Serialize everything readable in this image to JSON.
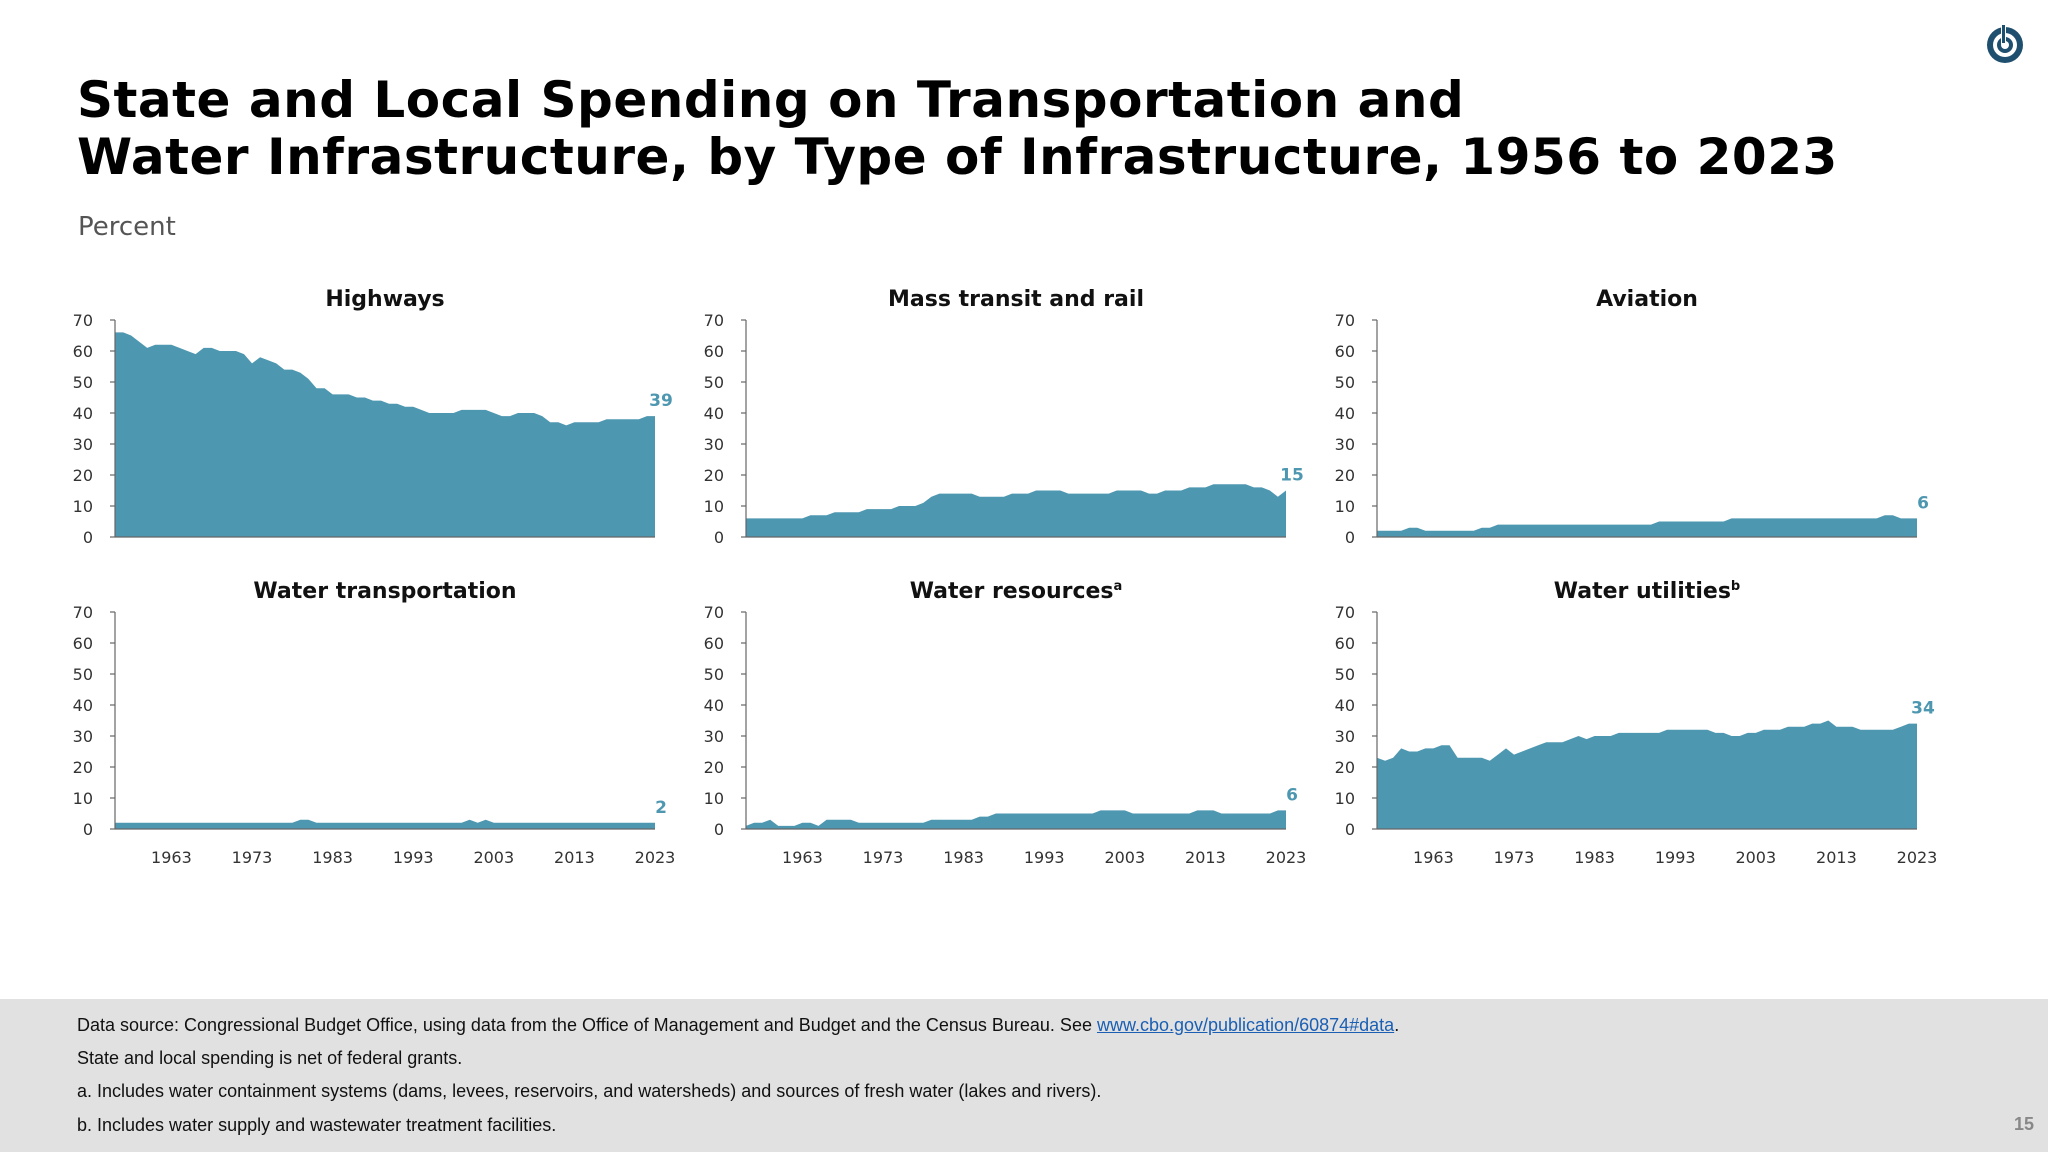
{
  "header": {
    "title_line1": "State and Local Spending on Transportation and",
    "title_line2": "Water Infrastructure, by Type of Infrastructure, 1956 to 2023",
    "units": "Percent"
  },
  "footer": {
    "source_prefix": "Data source: Congressional Budget Office, using data from the Office of Management and Budget and the Census Bureau. See ",
    "source_link": "www.cbo.gov/publication/60874#data",
    "source_suffix": ".",
    "note": "State and local spending is net of federal grants.",
    "footnote_a": "a. Includes water containment systems (dams, levees, reservoirs, and watersheds) and sources of fresh water (lakes and rivers).",
    "footnote_b": "b. Includes water supply and wastewater treatment facilities.",
    "page_number": "15"
  },
  "colors": {
    "area": "#4e97b0",
    "label": "#4e97b0",
    "axis": "#666666"
  },
  "icons": {
    "logo": "cbo-logo-icon"
  },
  "chart_data": [
    {
      "type": "area",
      "title": "Highways",
      "superscript": "",
      "ylim": [
        0,
        70
      ],
      "yticks": [
        0,
        10,
        20,
        30,
        40,
        50,
        60,
        70
      ],
      "xticks": [
        1963,
        1973,
        1983,
        1993,
        2003,
        2013,
        2023
      ],
      "x": [
        1956,
        1957,
        1958,
        1959,
        1960,
        1961,
        1962,
        1963,
        1964,
        1965,
        1966,
        1967,
        1968,
        1969,
        1970,
        1971,
        1972,
        1973,
        1974,
        1975,
        1976,
        1977,
        1978,
        1979,
        1980,
        1981,
        1982,
        1983,
        1984,
        1985,
        1986,
        1987,
        1988,
        1989,
        1990,
        1991,
        1992,
        1993,
        1994,
        1995,
        1996,
        1997,
        1998,
        1999,
        2000,
        2001,
        2002,
        2003,
        2004,
        2005,
        2006,
        2007,
        2008,
        2009,
        2010,
        2011,
        2012,
        2013,
        2014,
        2015,
        2016,
        2017,
        2018,
        2019,
        2020,
        2021,
        2022,
        2023
      ],
      "values": [
        66,
        66,
        65,
        63,
        61,
        62,
        62,
        62,
        61,
        60,
        59,
        61,
        61,
        60,
        60,
        60,
        59,
        56,
        58,
        57,
        56,
        54,
        54,
        53,
        51,
        48,
        48,
        46,
        46,
        46,
        45,
        45,
        44,
        44,
        43,
        43,
        42,
        42,
        41,
        40,
        40,
        40,
        40,
        41,
        41,
        41,
        41,
        40,
        39,
        39,
        40,
        40,
        40,
        39,
        37,
        37,
        36,
        37,
        37,
        37,
        37,
        38,
        38,
        38,
        38,
        38,
        39,
        39
      ],
      "end_label": "39",
      "show_xticks": false
    },
    {
      "type": "area",
      "title": "Mass transit and rail",
      "superscript": "",
      "ylim": [
        0,
        70
      ],
      "yticks": [
        0,
        10,
        20,
        30,
        40,
        50,
        60,
        70
      ],
      "xticks": [
        1963,
        1973,
        1983,
        1993,
        2003,
        2013,
        2023
      ],
      "x": [
        1956,
        1957,
        1958,
        1959,
        1960,
        1961,
        1962,
        1963,
        1964,
        1965,
        1966,
        1967,
        1968,
        1969,
        1970,
        1971,
        1972,
        1973,
        1974,
        1975,
        1976,
        1977,
        1978,
        1979,
        1980,
        1981,
        1982,
        1983,
        1984,
        1985,
        1986,
        1987,
        1988,
        1989,
        1990,
        1991,
        1992,
        1993,
        1994,
        1995,
        1996,
        1997,
        1998,
        1999,
        2000,
        2001,
        2002,
        2003,
        2004,
        2005,
        2006,
        2007,
        2008,
        2009,
        2010,
        2011,
        2012,
        2013,
        2014,
        2015,
        2016,
        2017,
        2018,
        2019,
        2020,
        2021,
        2022,
        2023
      ],
      "values": [
        6,
        6,
        6,
        6,
        6,
        6,
        6,
        6,
        7,
        7,
        7,
        8,
        8,
        8,
        8,
        9,
        9,
        9,
        9,
        10,
        10,
        10,
        11,
        13,
        14,
        14,
        14,
        14,
        14,
        13,
        13,
        13,
        13,
        14,
        14,
        14,
        15,
        15,
        15,
        15,
        14,
        14,
        14,
        14,
        14,
        14,
        15,
        15,
        15,
        15,
        14,
        14,
        15,
        15,
        15,
        16,
        16,
        16,
        17,
        17,
        17,
        17,
        17,
        16,
        16,
        15,
        13,
        15
      ],
      "end_label": "15",
      "show_xticks": false
    },
    {
      "type": "area",
      "title": "Aviation",
      "superscript": "",
      "ylim": [
        0,
        70
      ],
      "yticks": [
        0,
        10,
        20,
        30,
        40,
        50,
        60,
        70
      ],
      "xticks": [
        1963,
        1973,
        1983,
        1993,
        2003,
        2013,
        2023
      ],
      "x": [
        1956,
        1957,
        1958,
        1959,
        1960,
        1961,
        1962,
        1963,
        1964,
        1965,
        1966,
        1967,
        1968,
        1969,
        1970,
        1971,
        1972,
        1973,
        1974,
        1975,
        1976,
        1977,
        1978,
        1979,
        1980,
        1981,
        1982,
        1983,
        1984,
        1985,
        1986,
        1987,
        1988,
        1989,
        1990,
        1991,
        1992,
        1993,
        1994,
        1995,
        1996,
        1997,
        1998,
        1999,
        2000,
        2001,
        2002,
        2003,
        2004,
        2005,
        2006,
        2007,
        2008,
        2009,
        2010,
        2011,
        2012,
        2013,
        2014,
        2015,
        2016,
        2017,
        2018,
        2019,
        2020,
        2021,
        2022,
        2023
      ],
      "values": [
        2,
        2,
        2,
        2,
        3,
        3,
        2,
        2,
        2,
        2,
        2,
        2,
        2,
        3,
        3,
        4,
        4,
        4,
        4,
        4,
        4,
        4,
        4,
        4,
        4,
        4,
        4,
        4,
        4,
        4,
        4,
        4,
        4,
        4,
        4,
        5,
        5,
        5,
        5,
        5,
        5,
        5,
        5,
        5,
        6,
        6,
        6,
        6,
        6,
        6,
        6,
        6,
        6,
        6,
        6,
        6,
        6,
        6,
        6,
        6,
        6,
        6,
        6,
        7,
        7,
        6,
        6,
        6
      ],
      "end_label": "6",
      "show_xticks": false
    },
    {
      "type": "area",
      "title": "Water transportation",
      "superscript": "",
      "ylim": [
        0,
        70
      ],
      "yticks": [
        0,
        10,
        20,
        30,
        40,
        50,
        60,
        70
      ],
      "xticks": [
        1963,
        1973,
        1983,
        1993,
        2003,
        2013,
        2023
      ],
      "x": [
        1956,
        1957,
        1958,
        1959,
        1960,
        1961,
        1962,
        1963,
        1964,
        1965,
        1966,
        1967,
        1968,
        1969,
        1970,
        1971,
        1972,
        1973,
        1974,
        1975,
        1976,
        1977,
        1978,
        1979,
        1980,
        1981,
        1982,
        1983,
        1984,
        1985,
        1986,
        1987,
        1988,
        1989,
        1990,
        1991,
        1992,
        1993,
        1994,
        1995,
        1996,
        1997,
        1998,
        1999,
        2000,
        2001,
        2002,
        2003,
        2004,
        2005,
        2006,
        2007,
        2008,
        2009,
        2010,
        2011,
        2012,
        2013,
        2014,
        2015,
        2016,
        2017,
        2018,
        2019,
        2020,
        2021,
        2022,
        2023
      ],
      "values": [
        2,
        2,
        2,
        2,
        2,
        2,
        2,
        2,
        2,
        2,
        2,
        2,
        2,
        2,
        2,
        2,
        2,
        2,
        2,
        2,
        2,
        2,
        2,
        3,
        3,
        2,
        2,
        2,
        2,
        2,
        2,
        2,
        2,
        2,
        2,
        2,
        2,
        2,
        2,
        2,
        2,
        2,
        2,
        2,
        3,
        2,
        3,
        2,
        2,
        2,
        2,
        2,
        2,
        2,
        2,
        2,
        2,
        2,
        2,
        2,
        2,
        2,
        2,
        2,
        2,
        2,
        2,
        2
      ],
      "end_label": "2",
      "show_xticks": true
    },
    {
      "type": "area",
      "title": "Water resources",
      "superscript": "a",
      "ylim": [
        0,
        70
      ],
      "yticks": [
        0,
        10,
        20,
        30,
        40,
        50,
        60,
        70
      ],
      "xticks": [
        1963,
        1973,
        1983,
        1993,
        2003,
        2013,
        2023
      ],
      "x": [
        1956,
        1957,
        1958,
        1959,
        1960,
        1961,
        1962,
        1963,
        1964,
        1965,
        1966,
        1967,
        1968,
        1969,
        1970,
        1971,
        1972,
        1973,
        1974,
        1975,
        1976,
        1977,
        1978,
        1979,
        1980,
        1981,
        1982,
        1983,
        1984,
        1985,
        1986,
        1987,
        1988,
        1989,
        1990,
        1991,
        1992,
        1993,
        1994,
        1995,
        1996,
        1997,
        1998,
        1999,
        2000,
        2001,
        2002,
        2003,
        2004,
        2005,
        2006,
        2007,
        2008,
        2009,
        2010,
        2011,
        2012,
        2013,
        2014,
        2015,
        2016,
        2017,
        2018,
        2019,
        2020,
        2021,
        2022,
        2023
      ],
      "values": [
        1,
        2,
        2,
        3,
        1,
        1,
        1,
        2,
        2,
        1,
        3,
        3,
        3,
        3,
        2,
        2,
        2,
        2,
        2,
        2,
        2,
        2,
        2,
        3,
        3,
        3,
        3,
        3,
        3,
        4,
        4,
        5,
        5,
        5,
        5,
        5,
        5,
        5,
        5,
        5,
        5,
        5,
        5,
        5,
        6,
        6,
        6,
        6,
        5,
        5,
        5,
        5,
        5,
        5,
        5,
        5,
        6,
        6,
        6,
        5,
        5,
        5,
        5,
        5,
        5,
        5,
        6,
        6
      ],
      "end_label": "6",
      "show_xticks": true
    },
    {
      "type": "area",
      "title": "Water utilities",
      "superscript": "b",
      "ylim": [
        0,
        70
      ],
      "yticks": [
        0,
        10,
        20,
        30,
        40,
        50,
        60,
        70
      ],
      "xticks": [
        1963,
        1973,
        1983,
        1993,
        2003,
        2013,
        2023
      ],
      "x": [
        1956,
        1957,
        1958,
        1959,
        1960,
        1961,
        1962,
        1963,
        1964,
        1965,
        1966,
        1967,
        1968,
        1969,
        1970,
        1971,
        1972,
        1973,
        1974,
        1975,
        1976,
        1977,
        1978,
        1979,
        1980,
        1981,
        1982,
        1983,
        1984,
        1985,
        1986,
        1987,
        1988,
        1989,
        1990,
        1991,
        1992,
        1993,
        1994,
        1995,
        1996,
        1997,
        1998,
        1999,
        2000,
        2001,
        2002,
        2003,
        2004,
        2005,
        2006,
        2007,
        2008,
        2009,
        2010,
        2011,
        2012,
        2013,
        2014,
        2015,
        2016,
        2017,
        2018,
        2019,
        2020,
        2021,
        2022,
        2023
      ],
      "values": [
        23,
        22,
        23,
        26,
        25,
        25,
        26,
        26,
        27,
        27,
        23,
        23,
        23,
        23,
        22,
        24,
        26,
        24,
        25,
        26,
        27,
        28,
        28,
        28,
        29,
        30,
        29,
        30,
        30,
        30,
        31,
        31,
        31,
        31,
        31,
        31,
        32,
        32,
        32,
        32,
        32,
        32,
        31,
        31,
        30,
        30,
        31,
        31,
        32,
        32,
        32,
        33,
        33,
        33,
        34,
        34,
        35,
        33,
        33,
        33,
        32,
        32,
        32,
        32,
        32,
        33,
        34,
        34
      ],
      "end_label": "34",
      "show_xticks": true
    }
  ]
}
